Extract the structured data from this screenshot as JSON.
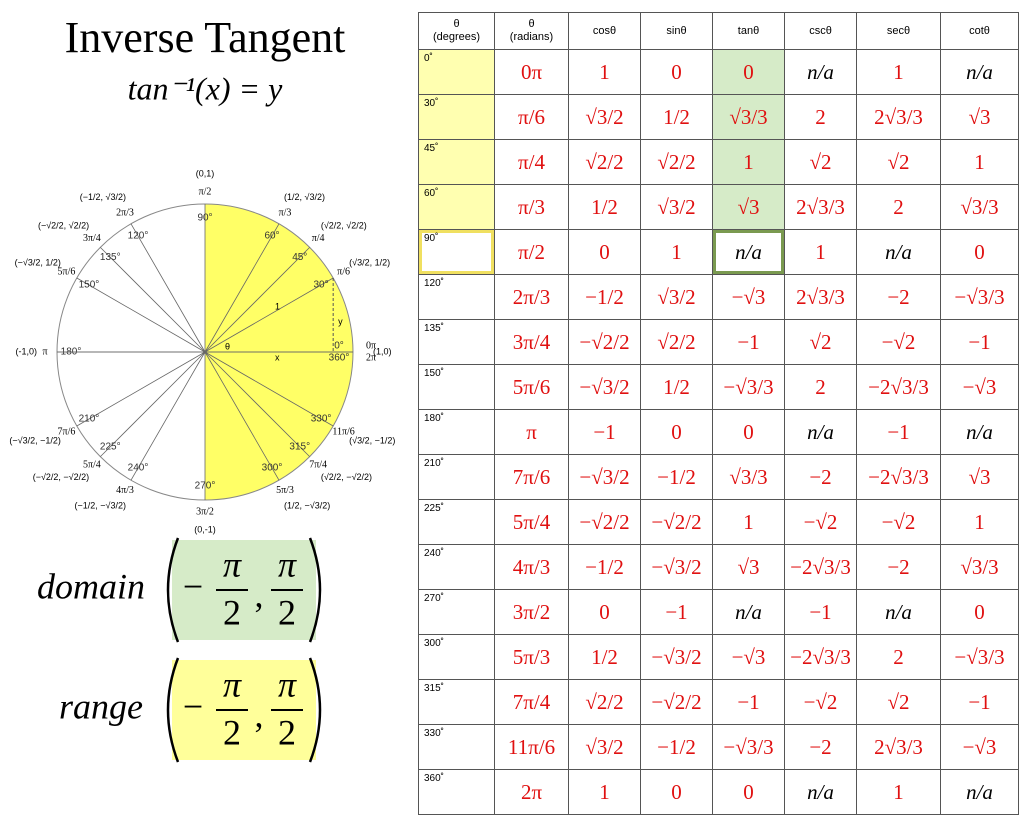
{
  "title": "Inverse Tangent",
  "formula": "tan⁻¹(x) = y",
  "circle": {
    "points": [
      {
        "degree": "0°",
        "radian": "0π",
        "coordinate": "(1,0)"
      },
      {
        "degree": "30°",
        "radian": "π/6",
        "coordinate": "(√3/2, 1/2)"
      },
      {
        "degree": "45°",
        "radian": "π/4",
        "coordinate": "(√2/2, √2/2)"
      },
      {
        "degree": "60°",
        "radian": "π/3",
        "coordinate": "(1/2, √3/2)"
      },
      {
        "degree": "90°",
        "radian": "π/2",
        "coordinate": "(0,1)"
      },
      {
        "degree": "120°",
        "radian": "2π/3",
        "coordinate": "(−1/2, √3/2)"
      },
      {
        "degree": "135°",
        "radian": "3π/4",
        "coordinate": "(−√2/2, √2/2)"
      },
      {
        "degree": "150°",
        "radian": "5π/6",
        "coordinate": "(−√3/2, 1/2)"
      },
      {
        "degree": "180°",
        "radian": "π",
        "coordinate": "(-1,0)"
      },
      {
        "degree": "210°",
        "radian": "7π/6",
        "coordinate": "(−√3/2, −1/2)"
      },
      {
        "degree": "225°",
        "radian": "5π/4",
        "coordinate": "(−√2/2, −√2/2)"
      },
      {
        "degree": "240°",
        "radian": "4π/3",
        "coordinate": "(−1/2, −√3/2)"
      },
      {
        "degree": "270°",
        "radian": "3π/2",
        "coordinate": "(0,-1)"
      },
      {
        "degree": "300°",
        "radian": "5π/3",
        "coordinate": "(1/2, −√3/2)"
      },
      {
        "degree": "315°",
        "radian": "7π/4",
        "coordinate": "(√2/2, −√2/2)"
      },
      {
        "degree": "330°",
        "radian": "11π/6",
        "coordinate": "(√3/2, −1/2)"
      },
      {
        "degree": "360°",
        "radian": "2π"
      }
    ],
    "triangle": {
      "angle": "θ",
      "hypotenuse": "1",
      "adjacent": "x",
      "opposite": "y"
    }
  },
  "domain": {
    "label": "domain",
    "sign": "−",
    "numerator1": "π",
    "denominator1": "2",
    "separator": ",",
    "numerator2": "π",
    "denominator2": "2"
  },
  "range": {
    "label": "range",
    "sign": "−",
    "numerator1": "π",
    "denominator1": "2",
    "separator": ",",
    "numerator2": "π",
    "denominator2": "2"
  },
  "table": {
    "header": [
      [
        "θ",
        "(degrees)"
      ],
      [
        "θ",
        "(radians)"
      ],
      "cosθ",
      "sinθ",
      "tanθ",
      "cscθ",
      "secθ",
      "cotθ"
    ],
    "rows": [
      [
        "0˚",
        "0π",
        "1",
        "0",
        "0",
        "n/a",
        "1",
        "n/a"
      ],
      [
        "30˚",
        "π/6",
        "√3/2",
        "1/2",
        "√3/3",
        "2",
        "2√3/3",
        "√3"
      ],
      [
        "45˚",
        "π/4",
        "√2/2",
        "√2/2",
        "1",
        "√2",
        "√2",
        "1"
      ],
      [
        "60˚",
        "π/3",
        "1/2",
        "√3/2",
        "√3",
        "2√3/3",
        "2",
        "√3/3"
      ],
      [
        "90˚",
        "π/2",
        "0",
        "1",
        "n/a",
        "1",
        "n/a",
        "0"
      ],
      [
        "120˚",
        "2π/3",
        "−1/2",
        "√3/2",
        "−√3",
        "2√3/3",
        "−2",
        "−√3/3"
      ],
      [
        "135˚",
        "3π/4",
        "−√2/2",
        "√2/2",
        "−1",
        "√2",
        "−√2",
        "−1"
      ],
      [
        "150˚",
        "5π/6",
        "−√3/2",
        "1/2",
        "−√3/3",
        "2",
        "−2√3/3",
        "−√3"
      ],
      [
        "180˚",
        "π",
        "−1",
        "0",
        "0",
        "n/a",
        "−1",
        "n/a"
      ],
      [
        "210˚",
        "7π/6",
        "−√3/2",
        "−1/2",
        "√3/3",
        "−2",
        "−2√3/3",
        "√3"
      ],
      [
        "225˚",
        "5π/4",
        "−√2/2",
        "−√2/2",
        "1",
        "−√2",
        "−√2",
        "1"
      ],
      [
        "240˚",
        "4π/3",
        "−1/2",
        "−√3/2",
        "√3",
        "−2√3/3",
        "−2",
        "√3/3"
      ],
      [
        "270˚",
        "3π/2",
        "0",
        "−1",
        "n/a",
        "−1",
        "n/a",
        "0"
      ],
      [
        "300˚",
        "5π/3",
        "1/2",
        "−√3/2",
        "−√3",
        "−2√3/3",
        "2",
        "−√3/3"
      ],
      [
        "315˚",
        "7π/4",
        "√2/2",
        "−√2/2",
        "−1",
        "−√2",
        "√2",
        "−1"
      ],
      [
        "330˚",
        "11π/6",
        "√3/2",
        "−1/2",
        "−√3/3",
        "−2",
        "2√3/3",
        "−√3"
      ],
      [
        "360˚",
        "2π",
        "1",
        "0",
        "0",
        "n/a",
        "1",
        "n/a"
      ]
    ]
  }
}
